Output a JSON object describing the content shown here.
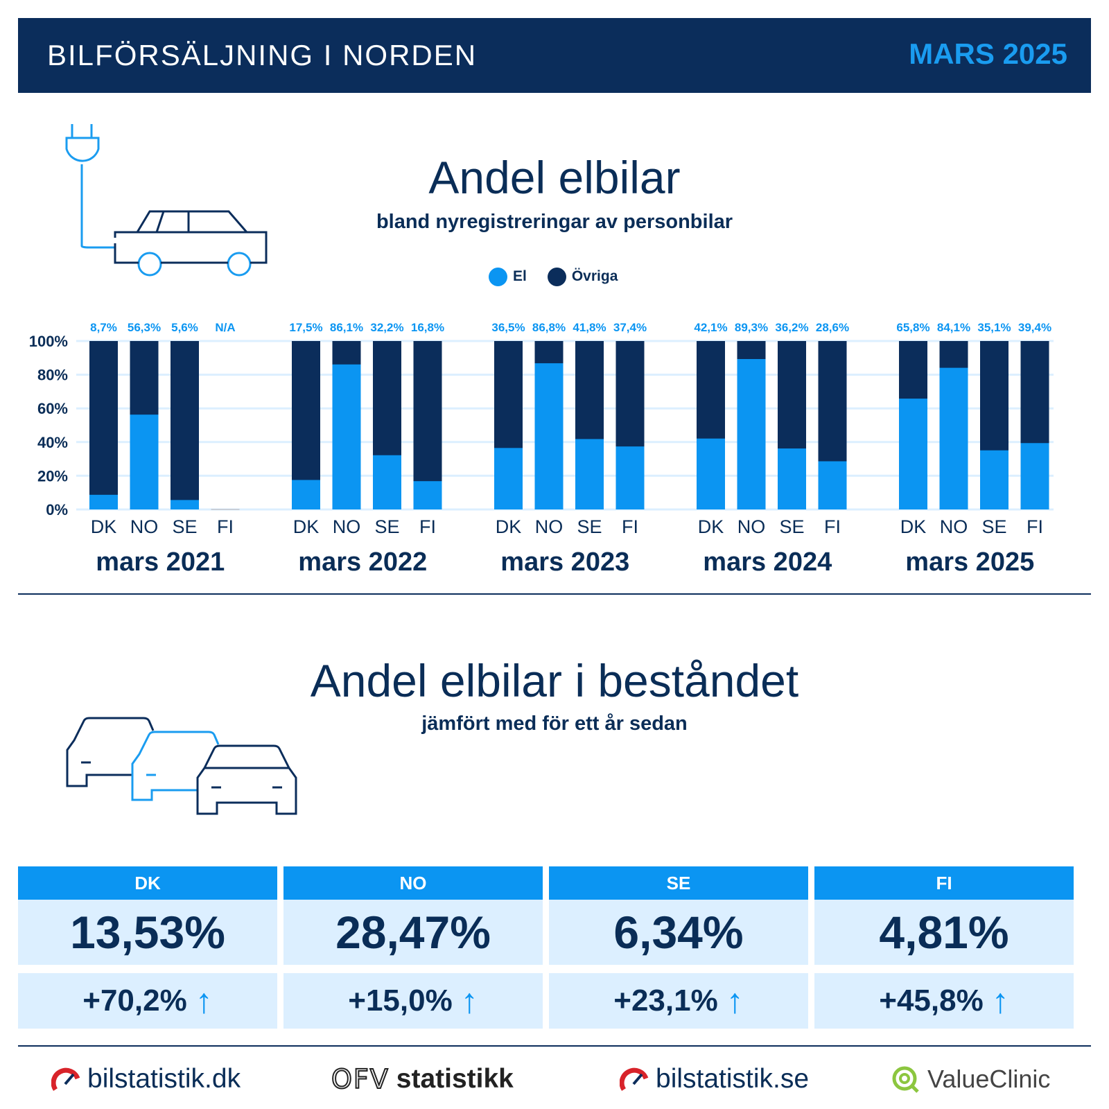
{
  "header": {
    "title": "BILFÖRSÄLJNING I NORDEN",
    "period": "MARS 2025"
  },
  "chart_section": {
    "title": "Andel elbilar",
    "subtitle": "bland nyregistreringar av personbilar",
    "icon": "car-plug-icon"
  },
  "legend": [
    {
      "label": "El",
      "color": "#0b95f2"
    },
    {
      "label": "Övriga",
      "color": "#0b2d5b"
    }
  ],
  "chart_data": {
    "type": "bar",
    "stacked": true,
    "y_ticks": [
      "100%",
      "80%",
      "60%",
      "40%",
      "20%",
      "0%"
    ],
    "ylim": [
      0,
      100
    ],
    "countries": [
      "DK",
      "NO",
      "SE",
      "FI"
    ],
    "groups": [
      {
        "label": "mars 2021",
        "labels": [
          "8,7%",
          "56,3%",
          "5,6%",
          "N/A"
        ],
        "el": [
          8.7,
          56.3,
          5.6,
          null
        ]
      },
      {
        "label": "mars 2022",
        "labels": [
          "17,5%",
          "86,1%",
          "32,2%",
          "16,8%"
        ],
        "el": [
          17.5,
          86.1,
          32.2,
          16.8
        ]
      },
      {
        "label": "mars 2023",
        "labels": [
          "36,5%",
          "86,8%",
          "41,8%",
          "37,4%"
        ],
        "el": [
          36.5,
          86.8,
          41.8,
          37.4
        ]
      },
      {
        "label": "mars 2024",
        "labels": [
          "42,1%",
          "89,3%",
          "36,2%",
          "28,6%"
        ],
        "el": [
          42.1,
          89.3,
          36.2,
          28.6
        ]
      },
      {
        "label": "mars 2025",
        "labels": [
          "65,8%",
          "84,1%",
          "35,1%",
          "39,4%"
        ],
        "el": [
          65.8,
          84.1,
          35.1,
          39.4
        ]
      }
    ],
    "series": [
      {
        "name": "El",
        "color": "#0b95f2"
      },
      {
        "name": "Övriga",
        "color": "#0b2d5b"
      }
    ],
    "grid": true,
    "legend_position": "top-center"
  },
  "stock_section": {
    "title": "Andel elbilar i beståndet",
    "subtitle": "jämfört med för ett år sedan",
    "icon": "cars-icon"
  },
  "stock_cards": [
    {
      "country": "DK",
      "value": "13,53%",
      "change": "+70,2%"
    },
    {
      "country": "NO",
      "value": "28,47%",
      "change": "+15,0%"
    },
    {
      "country": "SE",
      "value": "6,34%",
      "change": "+23,1%"
    },
    {
      "country": "FI",
      "value": "4,81%",
      "change": "+45,8%"
    }
  ],
  "arrow_icon": "arrow-up-icon",
  "logos": [
    {
      "name": "bilstatistik.dk",
      "icon": "speedometer-icon"
    },
    {
      "name": "statistikk",
      "icon": "ofv-icon",
      "mark": "OFV"
    },
    {
      "name": "bilstatistik.se",
      "icon": "speedometer-icon"
    },
    {
      "name": "ValueClinic",
      "icon": "valueclinic-q-icon"
    }
  ]
}
